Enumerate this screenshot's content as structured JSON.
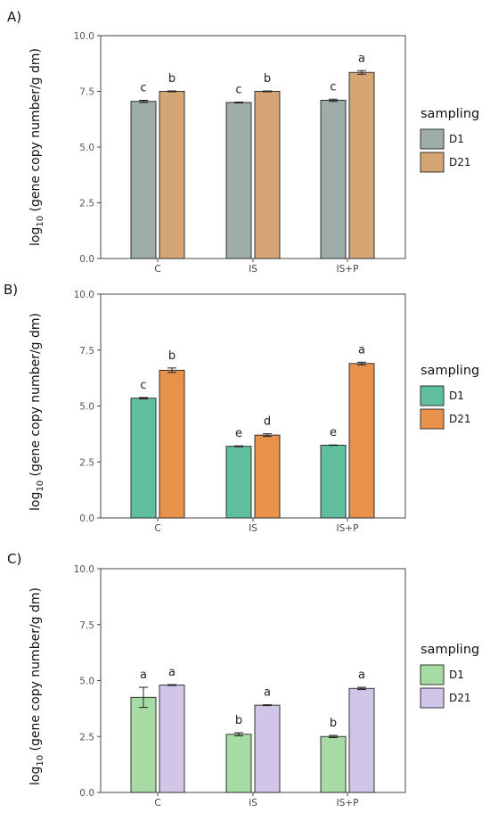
{
  "chart_data": [
    {
      "type": "bar",
      "panel_label": "A)",
      "categories": [
        "C",
        "IS",
        "IS+P"
      ],
      "ylabel": "log10 (gene copy number/g dm)",
      "ylim": [
        0,
        10
      ],
      "yticks": [
        "0.0",
        "2.5",
        "5.0",
        "7.5",
        "10.0"
      ],
      "legend": {
        "title": "sampling",
        "position": "right"
      },
      "grid": false,
      "series": [
        {
          "name": "D1",
          "color": "#9fada8",
          "values": [
            7.05,
            7.0,
            7.1
          ],
          "errors": [
            0.05,
            0.02,
            0.05
          ],
          "letters": [
            "c",
            "c",
            "c"
          ]
        },
        {
          "name": "D21",
          "color": "#d6a574",
          "values": [
            7.5,
            7.5,
            8.35
          ],
          "errors": [
            0.02,
            0.02,
            0.08
          ],
          "letters": [
            "b",
            "b",
            "a"
          ]
        }
      ]
    },
    {
      "type": "bar",
      "panel_label": "B)",
      "categories": [
        "C",
        "IS",
        "IS+P"
      ],
      "ylabel": "log10 (gene copy number/g dm)",
      "ylim": [
        0,
        10
      ],
      "yticks": [
        "0.0",
        "2.5",
        "5.0",
        "7.5",
        "10.0"
      ],
      "legend": {
        "title": "sampling",
        "position": "right"
      },
      "grid": false,
      "series": [
        {
          "name": "D1",
          "color": "#5fbf9f",
          "values": [
            5.35,
            3.2,
            3.25
          ],
          "errors": [
            0.03,
            0.02,
            0.01
          ],
          "letters": [
            "c",
            "e",
            "e"
          ]
        },
        {
          "name": "D21",
          "color": "#e8914a",
          "values": [
            6.6,
            3.7,
            6.9
          ],
          "errors": [
            0.1,
            0.06,
            0.06
          ],
          "letters": [
            "b",
            "d",
            "a"
          ]
        }
      ]
    },
    {
      "type": "bar",
      "panel_label": "C)",
      "categories": [
        "C",
        "IS",
        "IS+P"
      ],
      "ylabel": "log10 (gene copy number/g dm)",
      "ylim": [
        0,
        10
      ],
      "yticks": [
        "0.0",
        "2.5",
        "5.0",
        "7.5",
        "10.0"
      ],
      "legend": {
        "title": "sampling",
        "position": "right"
      },
      "grid": false,
      "series": [
        {
          "name": "D1",
          "color": "#a6dba4",
          "values": [
            4.25,
            2.6,
            2.5
          ],
          "errors": [
            0.45,
            0.07,
            0.05
          ],
          "letters": [
            "a",
            "b",
            "b"
          ]
        },
        {
          "name": "D21",
          "color": "#d1c6e8",
          "values": [
            4.8,
            3.9,
            4.65
          ],
          "errors": [
            0.02,
            0.02,
            0.05
          ],
          "letters": [
            "a",
            "a",
            "a"
          ]
        }
      ]
    }
  ]
}
